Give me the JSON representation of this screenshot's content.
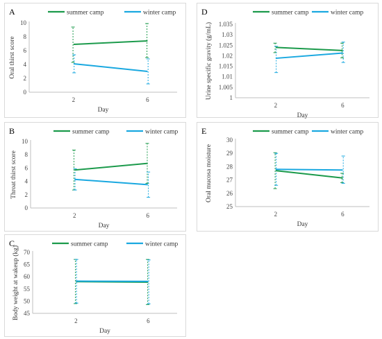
{
  "colors": {
    "summer": "#1b9a4b",
    "winter": "#19a8e0",
    "axis": "#bfbfbf",
    "border": "#d9d9d9"
  },
  "chart_data": [
    {
      "id": "A",
      "panel_label": "A",
      "type": "line",
      "categories": [
        "2",
        "6"
      ],
      "xlabel": "Day",
      "ylabel": "Oral thirst score",
      "ylim": [
        0,
        10
      ],
      "yticks": [
        "0",
        "2",
        "4",
        "6",
        "8",
        "10"
      ],
      "grid": false,
      "legend": "top",
      "series": [
        {
          "name": "summer camp",
          "values": [
            6.9,
            7.4
          ],
          "err_lo": [
            4.3,
            5.0
          ],
          "err_hi": [
            9.4,
            9.9
          ]
        },
        {
          "name": "winter camp",
          "values": [
            4.1,
            3.0
          ],
          "err_lo": [
            2.8,
            1.2
          ],
          "err_hi": [
            5.4,
            4.8
          ]
        }
      ]
    },
    {
      "id": "D",
      "panel_label": "D",
      "type": "line",
      "categories": [
        "2",
        "6"
      ],
      "xlabel": "Day",
      "ylabel": "Urine specific gravity (g/mL)",
      "ylim": [
        1,
        1.035
      ],
      "yticks": [
        "1",
        "1.005",
        "1.01",
        "1.015",
        "1.02",
        "1.025",
        "1.03",
        "1.035"
      ],
      "grid": false,
      "legend": "top",
      "series": [
        {
          "name": "summer camp",
          "values": [
            1.024,
            1.0225
          ],
          "err_lo": [
            1.0215,
            1.019
          ],
          "err_hi": [
            1.026,
            1.026
          ]
        },
        {
          "name": "winter camp",
          "values": [
            1.0188,
            1.0213
          ],
          "err_lo": [
            1.012,
            1.0168
          ],
          "err_hi": [
            1.0245,
            1.0265
          ]
        }
      ]
    },
    {
      "id": "B",
      "panel_label": "B",
      "type": "line",
      "categories": [
        "2",
        "6"
      ],
      "xlabel": "Day",
      "ylabel": "Throat thirst score",
      "ylim": [
        0,
        10
      ],
      "yticks": [
        "0",
        "2",
        "4",
        "6",
        "8",
        "10"
      ],
      "grid": false,
      "legend": "top",
      "series": [
        {
          "name": "summer camp",
          "values": [
            5.7,
            6.7
          ],
          "err_lo": [
            2.7,
            3.7
          ],
          "err_hi": [
            8.7,
            9.7
          ]
        },
        {
          "name": "winter camp",
          "values": [
            4.3,
            3.5
          ],
          "err_lo": [
            2.7,
            1.6
          ],
          "err_hi": [
            5.9,
            5.4
          ]
        }
      ]
    },
    {
      "id": "E",
      "panel_label": "E",
      "type": "line",
      "categories": [
        "2",
        "6"
      ],
      "xlabel": "Day",
      "ylabel": "Oral mucosa moisture",
      "ylim": [
        25,
        30
      ],
      "yticks": [
        "25",
        "26",
        "27",
        "28",
        "29",
        "30"
      ],
      "grid": false,
      "legend": "top",
      "series": [
        {
          "name": "summer camp",
          "values": [
            27.7,
            27.15
          ],
          "err_lo": [
            26.35,
            26.8
          ],
          "err_hi": [
            29.05,
            27.5
          ]
        },
        {
          "name": "winter camp",
          "values": [
            27.8,
            27.75
          ],
          "err_lo": [
            26.6,
            26.75
          ],
          "err_hi": [
            29.0,
            28.8
          ]
        }
      ]
    },
    {
      "id": "C",
      "panel_label": "C",
      "type": "line",
      "categories": [
        "2",
        "6"
      ],
      "xlabel": "Day",
      "ylabel": "Body weight at wakeup (kg)",
      "ylim": [
        45,
        70
      ],
      "yticks": [
        "45",
        "50",
        "55",
        "60",
        "65",
        "70"
      ],
      "grid": false,
      "legend": "top",
      "series": [
        {
          "name": "summer camp",
          "values": [
            58.0,
            57.8
          ],
          "err_lo": [
            49.0,
            48.6
          ],
          "err_hi": [
            67.1,
            67.1
          ]
        },
        {
          "name": "winter camp",
          "values": [
            58.2,
            58.1
          ],
          "err_lo": [
            49.2,
            48.9
          ],
          "err_hi": [
            67.1,
            66.9
          ]
        }
      ]
    }
  ]
}
